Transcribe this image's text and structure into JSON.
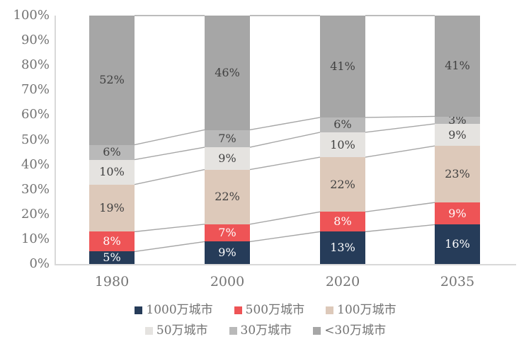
{
  "chart_data": {
    "type": "bar",
    "subtype": "stacked-100-percent-column",
    "title": "",
    "xlabel": "",
    "ylabel": "",
    "ylim": [
      0,
      100
    ],
    "grid": false,
    "legend_position": "bottom",
    "categories": [
      "1980",
      "2000",
      "2020",
      "2035"
    ],
    "y_ticks": [
      "100%",
      "90%",
      "80%",
      "70%",
      "60%",
      "50%",
      "40%",
      "30%",
      "20%",
      "10%",
      "0%"
    ],
    "series": [
      {
        "name": "1000万城市",
        "color": "#263c59",
        "label_color": "#ffffff",
        "values": [
          5,
          9,
          13,
          16
        ],
        "labels": [
          "5%",
          "9%",
          "13%",
          "16%"
        ]
      },
      {
        "name": "500万城市",
        "color": "#ee5456",
        "label_color": "#ffffff",
        "values": [
          8,
          7,
          8,
          9
        ],
        "labels": [
          "8%",
          "7%",
          "8%",
          "9%"
        ]
      },
      {
        "name": "100万城市",
        "color": "#ddc9ba",
        "label_color": "#404040",
        "values": [
          19,
          22,
          22,
          23
        ],
        "labels": [
          "19%",
          "22%",
          "22%",
          "23%"
        ]
      },
      {
        "name": "50万城市",
        "color": "#e5e3e0",
        "label_color": "#404040",
        "values": [
          10,
          9,
          10,
          9
        ],
        "labels": [
          "10%",
          "9%",
          "10%",
          "9%"
        ]
      },
      {
        "name": "30万城市",
        "color": "#b9b9b9",
        "label_color": "#404040",
        "values": [
          6,
          7,
          6,
          3
        ],
        "labels": [
          "6%",
          "7%",
          "6%",
          "3%"
        ]
      },
      {
        "name": "<30万城市",
        "color": "#a6a6a6",
        "label_color": "#404040",
        "values": [
          52,
          46,
          41,
          41
        ],
        "labels": [
          "52%",
          "46%",
          "41%",
          "41%"
        ]
      }
    ],
    "colors": {
      "axis_line": "#d9d9d9",
      "tick_label": "#737373",
      "connector_line": "#a6a6a6",
      "background": "#ffffff"
    }
  }
}
